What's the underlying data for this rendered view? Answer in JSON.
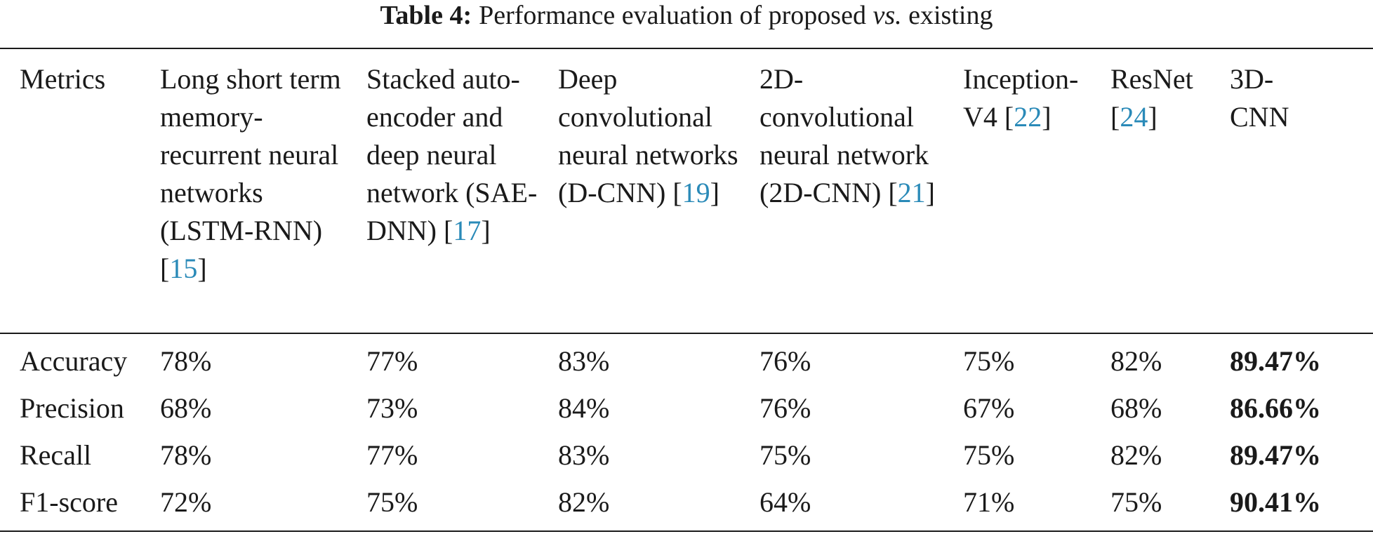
{
  "caption": {
    "label": "Table 4:",
    "text_main": "Performance evaluation of proposed ",
    "text_italic": "vs.",
    "text_tail": " existing"
  },
  "header": [
    {
      "text": "Metrics",
      "ref": ""
    },
    {
      "text": "Long short term memory-recurrent neural networks (LSTM-RNN) ",
      "ref": "15"
    },
    {
      "text": "Stacked auto-encoder and deep neural network (SAE-DNN) ",
      "ref": "17"
    },
    {
      "text": "Deep convolutional neural networks (D-CNN) ",
      "ref": "19"
    },
    {
      "text": "2D-convolutional neural network (2D-CNN) ",
      "ref": "21"
    },
    {
      "text": "Inception-V4 ",
      "ref": "22"
    },
    {
      "text": "ResNet ",
      "ref": "24"
    },
    {
      "text": "3D-CNN",
      "ref": ""
    }
  ],
  "rows": [
    {
      "metric": "Accuracy",
      "values": [
        "78%",
        "77%",
        "83%",
        "76%",
        "75%",
        "82%",
        "89.47%"
      ]
    },
    {
      "metric": "Precision",
      "values": [
        "68%",
        "73%",
        "84%",
        "76%",
        "67%",
        "68%",
        "86.66%"
      ]
    },
    {
      "metric": "Recall",
      "values": [
        "78%",
        "77%",
        "83%",
        "75%",
        "75%",
        "82%",
        "89.47%"
      ]
    },
    {
      "metric": "F1-score",
      "values": [
        "72%",
        "75%",
        "82%",
        "64%",
        "71%",
        "75%",
        "90.41%"
      ]
    }
  ],
  "colors": {
    "text": "#1a1a1a",
    "reference_link": "#2a8ab8"
  }
}
